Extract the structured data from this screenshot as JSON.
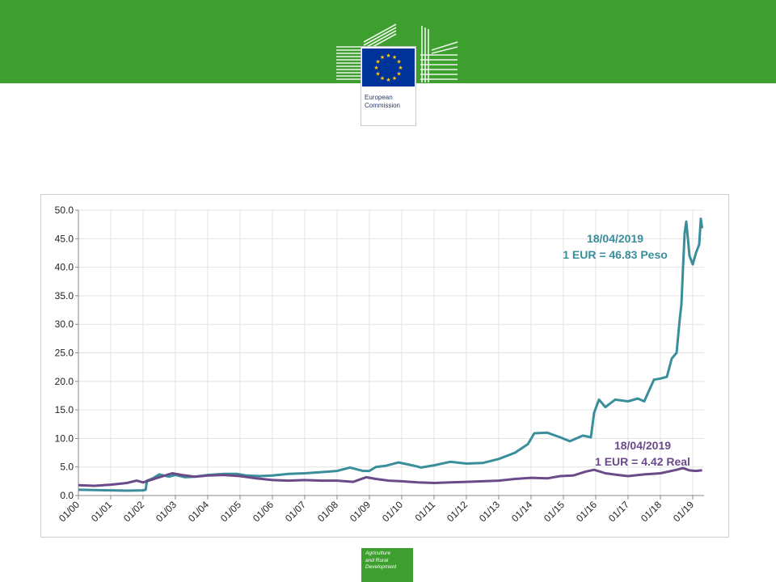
{
  "header": {
    "logo_line1": "European",
    "logo_line2": "Commission"
  },
  "footer": {
    "badge_line1": "Agriculture",
    "badge_line2": "and Rural",
    "badge_line3": "Development"
  },
  "colors": {
    "band": "#3d9f2e",
    "peso": "#3a8e9b",
    "real": "#6b4a8a",
    "flag": "#003399",
    "star": "#ffcc00"
  },
  "chart_data": {
    "type": "line",
    "x_ticks": [
      "01/00",
      "01/01",
      "01/02",
      "01/03",
      "01/04",
      "01/05",
      "01/06",
      "01/07",
      "01/08",
      "01/09",
      "01/10",
      "01/11",
      "01/12",
      "01/13",
      "01/14",
      "01/15",
      "01/16",
      "01/17",
      "01/18",
      "01/19"
    ],
    "y_ticks": [
      "50.0",
      "45.0",
      "40.0",
      "35.0",
      "30.0",
      "25.0",
      "20.0",
      "15.0",
      "10.0",
      "5.0",
      "0.0"
    ],
    "ylim": [
      0,
      50
    ],
    "xlim": [
      "01/2000",
      "05/2019"
    ],
    "grid": true,
    "series": [
      {
        "key": "peso",
        "color": "#3a8e9b",
        "points": [
          [
            2000.0,
            1.0
          ],
          [
            2000.5,
            0.95
          ],
          [
            2001.0,
            0.9
          ],
          [
            2001.5,
            0.85
          ],
          [
            2002.0,
            0.9
          ],
          [
            2002.08,
            1.0
          ],
          [
            2002.12,
            2.6
          ],
          [
            2002.3,
            3.0
          ],
          [
            2002.5,
            3.7
          ],
          [
            2002.8,
            3.3
          ],
          [
            2003.0,
            3.6
          ],
          [
            2003.3,
            3.2
          ],
          [
            2003.6,
            3.3
          ],
          [
            2004.0,
            3.6
          ],
          [
            2004.5,
            3.8
          ],
          [
            2004.9,
            3.8
          ],
          [
            2005.2,
            3.5
          ],
          [
            2005.6,
            3.4
          ],
          [
            2006.0,
            3.5
          ],
          [
            2006.5,
            3.8
          ],
          [
            2007.0,
            3.9
          ],
          [
            2007.5,
            4.1
          ],
          [
            2008.0,
            4.3
          ],
          [
            2008.4,
            4.9
          ],
          [
            2008.8,
            4.3
          ],
          [
            2009.0,
            4.3
          ],
          [
            2009.2,
            5.0
          ],
          [
            2009.5,
            5.2
          ],
          [
            2009.9,
            5.8
          ],
          [
            2010.4,
            5.2
          ],
          [
            2010.6,
            4.9
          ],
          [
            2011.0,
            5.3
          ],
          [
            2011.5,
            5.9
          ],
          [
            2012.0,
            5.6
          ],
          [
            2012.5,
            5.7
          ],
          [
            2013.0,
            6.4
          ],
          [
            2013.5,
            7.5
          ],
          [
            2013.9,
            9.0
          ],
          [
            2014.1,
            10.9
          ],
          [
            2014.5,
            11.0
          ],
          [
            2014.9,
            10.2
          ],
          [
            2015.2,
            9.5
          ],
          [
            2015.6,
            10.5
          ],
          [
            2015.85,
            10.2
          ],
          [
            2015.95,
            14.5
          ],
          [
            2016.1,
            16.8
          ],
          [
            2016.3,
            15.5
          ],
          [
            2016.6,
            16.8
          ],
          [
            2017.0,
            16.5
          ],
          [
            2017.3,
            17.0
          ],
          [
            2017.5,
            16.5
          ],
          [
            2017.8,
            20.3
          ],
          [
            2018.0,
            20.5
          ],
          [
            2018.2,
            20.8
          ],
          [
            2018.35,
            24.0
          ],
          [
            2018.5,
            25.0
          ],
          [
            2018.6,
            31.0
          ],
          [
            2018.65,
            33.5
          ],
          [
            2018.7,
            40.0
          ],
          [
            2018.75,
            46.0
          ],
          [
            2018.8,
            48.0
          ],
          [
            2018.9,
            42.0
          ],
          [
            2019.0,
            40.5
          ],
          [
            2019.1,
            42.5
          ],
          [
            2019.2,
            44.0
          ],
          [
            2019.25,
            48.5
          ],
          [
            2019.29,
            46.83
          ]
        ]
      },
      {
        "key": "real",
        "color": "#6b4a8a",
        "points": [
          [
            2000.0,
            1.8
          ],
          [
            2000.5,
            1.7
          ],
          [
            2001.0,
            1.9
          ],
          [
            2001.5,
            2.2
          ],
          [
            2001.8,
            2.6
          ],
          [
            2002.0,
            2.3
          ],
          [
            2002.5,
            3.2
          ],
          [
            2002.9,
            3.9
          ],
          [
            2003.2,
            3.6
          ],
          [
            2003.6,
            3.3
          ],
          [
            2004.0,
            3.5
          ],
          [
            2004.5,
            3.6
          ],
          [
            2005.0,
            3.4
          ],
          [
            2005.5,
            3.0
          ],
          [
            2006.0,
            2.7
          ],
          [
            2006.5,
            2.6
          ],
          [
            2007.0,
            2.7
          ],
          [
            2007.5,
            2.6
          ],
          [
            2008.0,
            2.6
          ],
          [
            2008.5,
            2.4
          ],
          [
            2008.9,
            3.2
          ],
          [
            2009.2,
            2.9
          ],
          [
            2009.6,
            2.6
          ],
          [
            2010.0,
            2.5
          ],
          [
            2010.5,
            2.3
          ],
          [
            2011.0,
            2.2
          ],
          [
            2011.5,
            2.3
          ],
          [
            2012.0,
            2.4
          ],
          [
            2012.5,
            2.5
          ],
          [
            2013.0,
            2.6
          ],
          [
            2013.5,
            2.9
          ],
          [
            2014.0,
            3.1
          ],
          [
            2014.5,
            3.0
          ],
          [
            2014.9,
            3.4
          ],
          [
            2015.3,
            3.5
          ],
          [
            2015.7,
            4.2
          ],
          [
            2015.95,
            4.5
          ],
          [
            2016.3,
            3.9
          ],
          [
            2016.7,
            3.6
          ],
          [
            2017.0,
            3.4
          ],
          [
            2017.5,
            3.7
          ],
          [
            2018.0,
            3.9
          ],
          [
            2018.5,
            4.5
          ],
          [
            2018.7,
            4.8
          ],
          [
            2018.9,
            4.4
          ],
          [
            2019.1,
            4.3
          ],
          [
            2019.29,
            4.42
          ]
        ]
      }
    ],
    "annotations": {
      "peso": {
        "date": "18/04/2019",
        "text": "1 EUR = 46.83 Peso"
      },
      "real": {
        "date": "18/04/2019",
        "text": "1 EUR = 4.42 Real"
      }
    }
  }
}
